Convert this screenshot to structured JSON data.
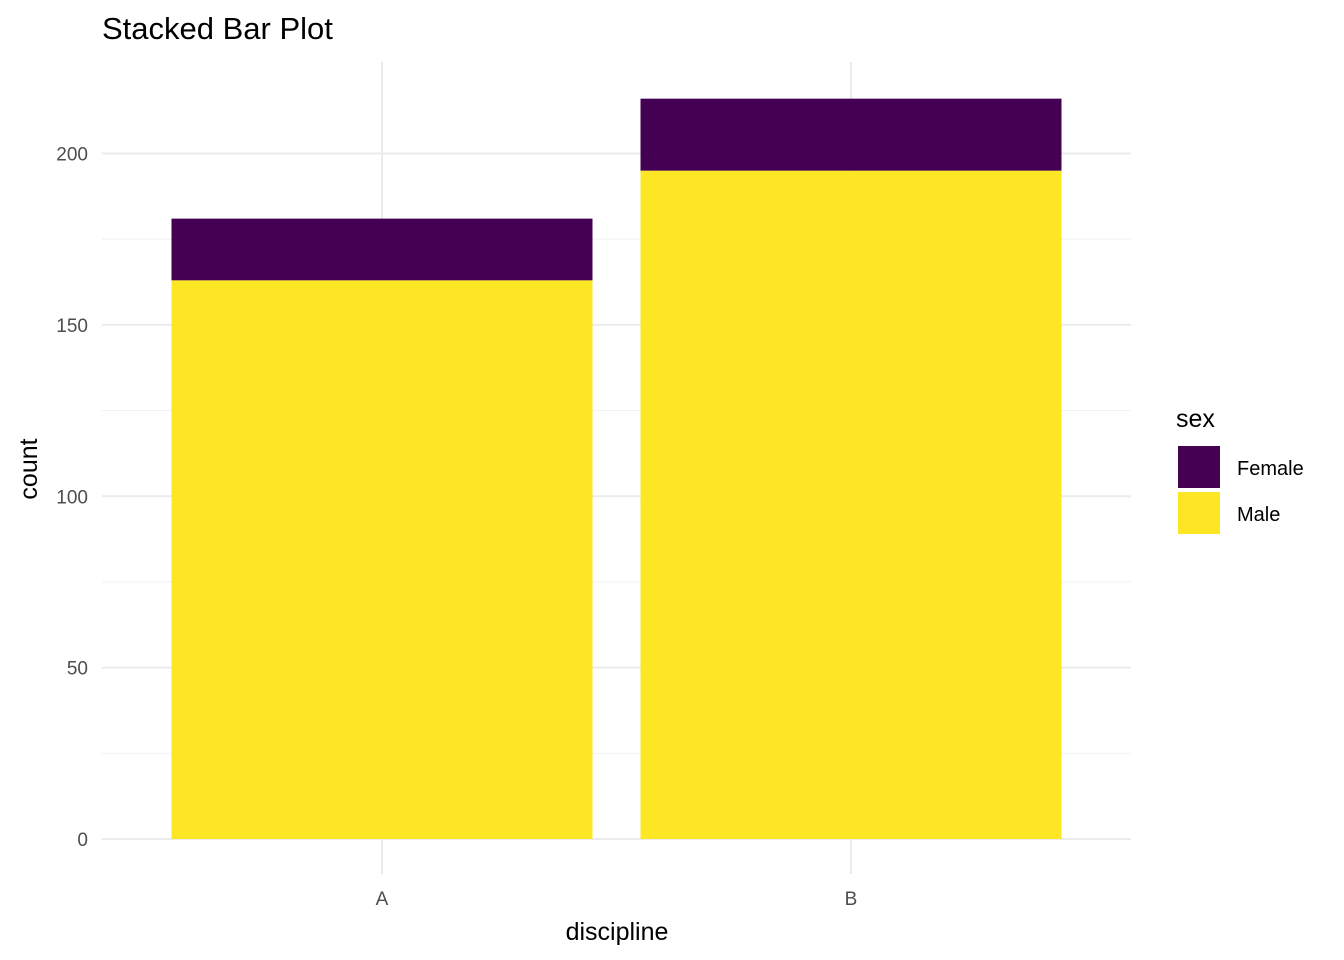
{
  "chart_data": {
    "type": "bar",
    "stacked": true,
    "title": "Stacked Bar Plot",
    "xlabel": "discipline",
    "ylabel": "count",
    "categories": [
      "A",
      "B"
    ],
    "series": [
      {
        "name": "Male",
        "values": [
          163,
          195
        ],
        "color": "#FDE725"
      },
      {
        "name": "Female",
        "values": [
          18,
          21
        ],
        "color": "#440154"
      }
    ],
    "ylim": [
      0,
      225
    ],
    "yticks": [
      0,
      50,
      100,
      150,
      200
    ],
    "grid": true,
    "legend": {
      "title": "sex",
      "placement": "right",
      "items": [
        {
          "label": "Female",
          "color": "#440154"
        },
        {
          "label": "Male",
          "color": "#FDE725"
        }
      ]
    }
  }
}
